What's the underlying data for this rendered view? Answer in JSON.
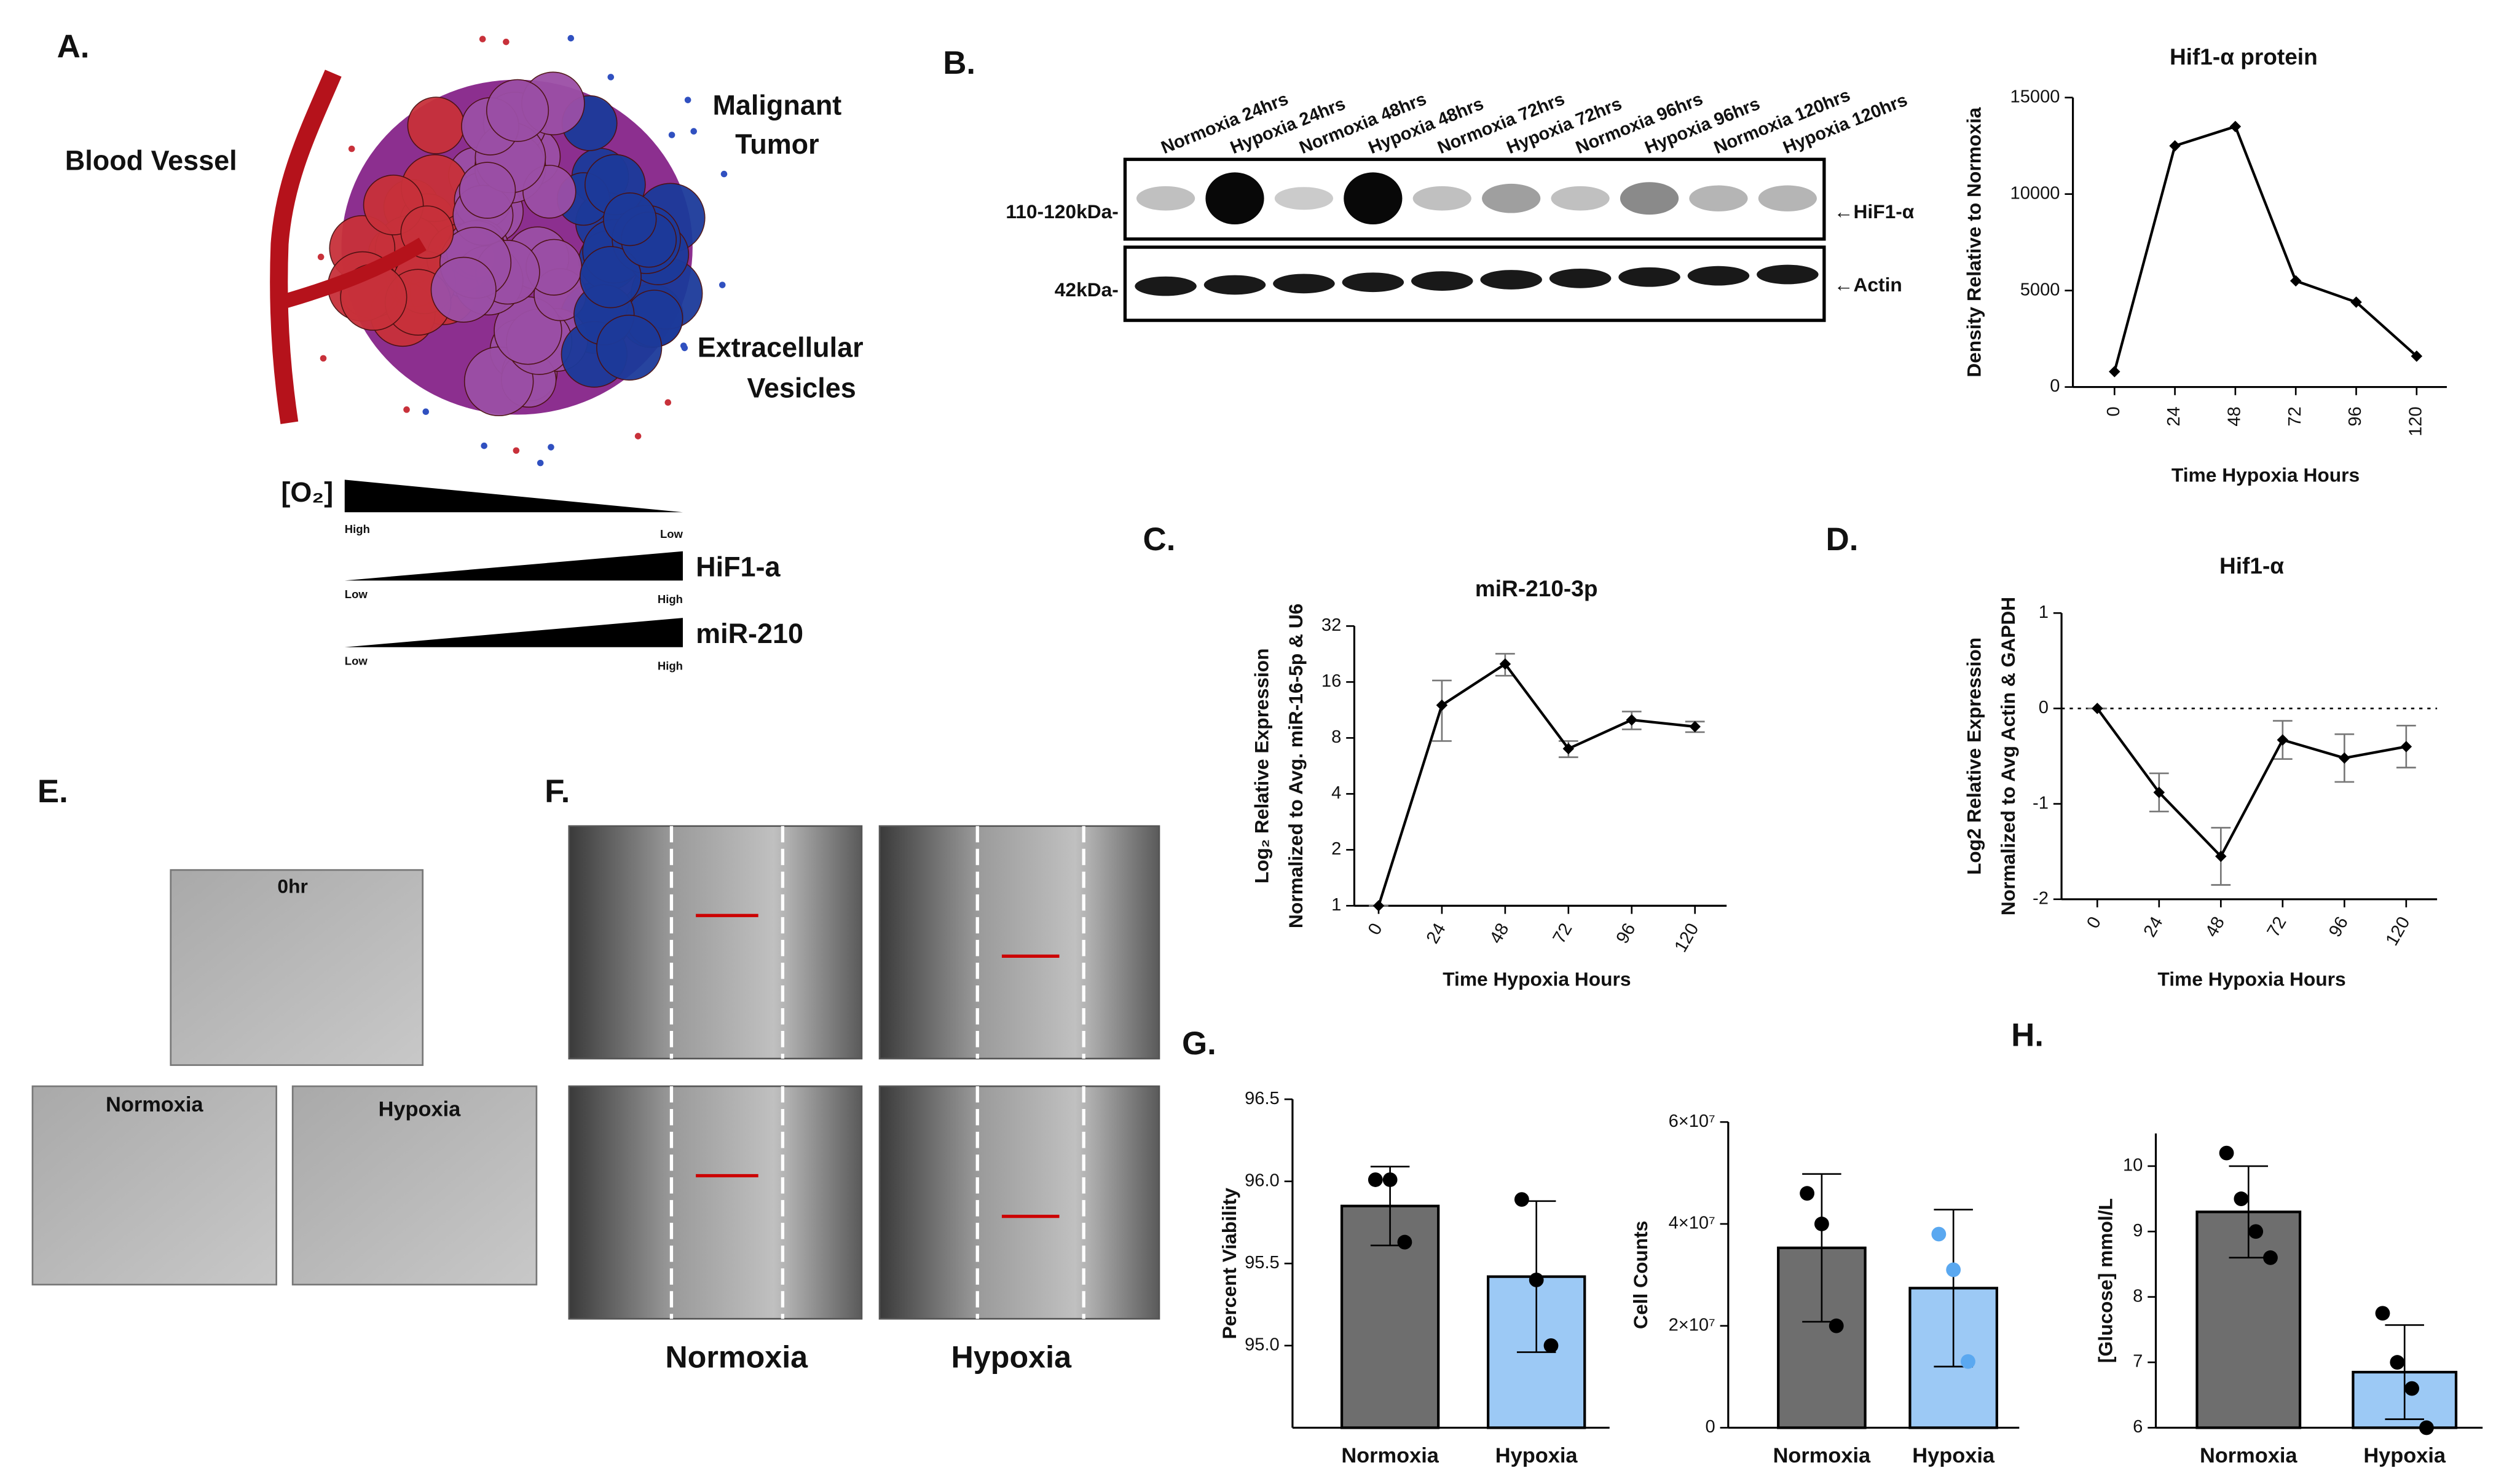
{
  "panel_labels": [
    "A.",
    "B.",
    "C.",
    "D.",
    "E.",
    "F.",
    "G.",
    "H."
  ],
  "diagram": {
    "blood_vessel": "Blood Vessel",
    "tumor": [
      "Malignant",
      "Tumor"
    ],
    "vesicles": [
      "Extracellular",
      "Vesicles"
    ],
    "gradients": [
      {
        "label": "[O₂]",
        "left": "High",
        "right": "Low"
      },
      {
        "label": "HiF1-a",
        "left": "Low",
        "right": "High"
      },
      {
        "label": "miR-210",
        "left": "Low",
        "right": "High"
      }
    ]
  },
  "blot": {
    "lanes": [
      "Normoxia 24hrs",
      "Hypoxia 24hrs",
      "Normoxia 48hrs",
      "Hypoxia 48hrs",
      "Normoxia 72hrs",
      "Hypoxia 72hrs",
      "Normoxia 96hrs",
      "Hypoxia 96hrs",
      "Normoxia 120hrs",
      "Hypoxia 120hrs"
    ],
    "markers": [
      "110-120kDa-",
      "42kDa-"
    ],
    "bands": [
      "←HiF1-α",
      "←Actin"
    ]
  },
  "images_e": {
    "labels": [
      "0hr",
      "Normoxia",
      "Hypoxia"
    ]
  },
  "images_f": {
    "labels": [
      "Normoxia",
      "Hypoxia"
    ]
  },
  "chart_data": [
    {
      "type": "line",
      "title": "Hif1-α protein",
      "x_label": "Time Hypoxia Hours",
      "y_label": [
        "Density Relative to Normoxia"
      ],
      "categories": [
        "0",
        "24",
        "48",
        "72",
        "96",
        "120"
      ],
      "values": [
        800,
        12500,
        13500,
        5500,
        4400,
        1600
      ],
      "ylim": [
        0,
        15000
      ],
      "yticks": [
        0,
        5000,
        10000,
        15000
      ],
      "color": "#000000"
    },
    {
      "type": "line",
      "title": "miR-210-3p",
      "x_label": "Time Hypoxia Hours",
      "y_label": [
        "Log₂ Relative Expression",
        "Normalized to Avg. miR-16-5p & U6"
      ],
      "categories": [
        "0",
        "24",
        "48",
        "72",
        "96",
        "120"
      ],
      "values": [
        1,
        12,
        20,
        7,
        10,
        9.2
      ],
      "errors": [
        0,
        4.3,
        2.7,
        0.7,
        1.1,
        0.6
      ],
      "log_base": 2,
      "ylim": [
        1,
        32
      ],
      "yticks": [
        1,
        2,
        4,
        8,
        16,
        32
      ],
      "color": "#000000"
    },
    {
      "type": "line",
      "title": "Hif1-α",
      "x_label": "Time Hypoxia Hours",
      "y_label": [
        "Log2 Relative Expression",
        "Normalized to Avg Actin & GAPDH"
      ],
      "categories": [
        "0",
        "24",
        "48",
        "72",
        "96",
        "120"
      ],
      "values": [
        0,
        -0.88,
        -1.55,
        -0.33,
        -0.52,
        -0.4
      ],
      "errors": [
        0,
        0.2,
        0.3,
        0.2,
        0.25,
        0.22
      ],
      "zero_line": true,
      "ylim": [
        -2,
        1
      ],
      "yticks": [
        -2,
        -1,
        0,
        1
      ],
      "color": "#000000"
    },
    {
      "type": "bar",
      "y_label": "Percent Viability",
      "categories": [
        "Normoxia",
        "Hypoxia"
      ],
      "values": [
        95.85,
        95.42
      ],
      "errors": [
        0.24,
        0.46
      ],
      "points": [
        [
          96.01,
          96.01,
          95.63
        ],
        [
          95.89,
          95.4,
          95.0
        ]
      ],
      "colors": [
        "#6e6e6e",
        "#9cc9f5"
      ],
      "point_colors": [
        "#000000",
        "#000000"
      ],
      "ylim": [
        94.5,
        96.5
      ],
      "yticks": [
        {
          "value": 95,
          "label": "95.0"
        },
        95.5,
        {
          "value": 96,
          "label": "96.0"
        },
        96.5
      ]
    },
    {
      "type": "bar",
      "y_label": "Cell Counts",
      "categories": [
        "Normoxia",
        "Hypoxia"
      ],
      "values": [
        35300000,
        27400000
      ],
      "errors": [
        14500000,
        15400000
      ],
      "points": [
        [
          46000000,
          40000000,
          20000000
        ],
        [
          38000000,
          31000000,
          13000000
        ]
      ],
      "colors": [
        "#6e6e6e",
        "#9cc9f5"
      ],
      "point_colors": [
        "#000000",
        "#5aa8f0"
      ],
      "ylim": [
        0,
        60000000
      ],
      "yticks": [
        0,
        {
          "value": 20000000,
          "label": "2×10⁷"
        },
        {
          "value": 40000000,
          "label": "4×10⁷"
        },
        {
          "value": 60000000,
          "label": "6×10⁷"
        }
      ]
    },
    {
      "type": "bar",
      "y_label": "[Glucose] mmol/L",
      "categories": [
        "Normoxia",
        "Hypoxia"
      ],
      "values": [
        9.3,
        6.85
      ],
      "errors": [
        0.7,
        0.72
      ],
      "points": [
        [
          10.2,
          9.5,
          9.0,
          8.6
        ],
        [
          7.75,
          7.0,
          6.6,
          6.0
        ]
      ],
      "colors": [
        "#6e6e6e",
        "#9cc9f5"
      ],
      "point_colors": [
        "#000000",
        "#000000"
      ],
      "ylim": [
        6,
        10.5
      ],
      "yticks": [
        6,
        7,
        8,
        9,
        10
      ]
    }
  ]
}
